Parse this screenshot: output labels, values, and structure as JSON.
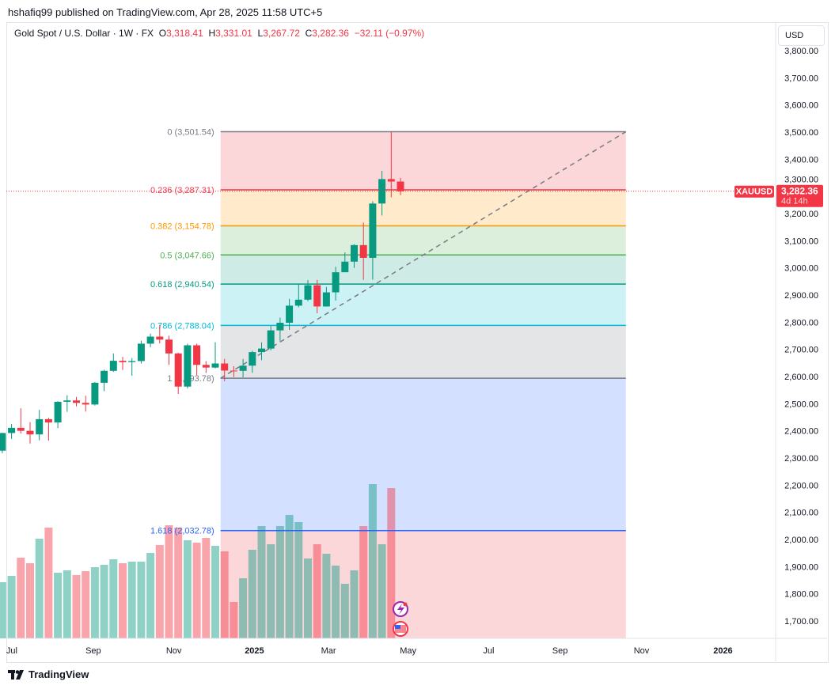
{
  "published": "hshafiq99 published on TradingView.com, Apr 28, 2025 11:58 UTC+5",
  "legend": {
    "symbol": "Gold Spot / U.S. Dollar · 1W · FX",
    "o_label": "O",
    "o": "3,318.41",
    "h_label": "H",
    "h": "3,331.01",
    "l_label": "L",
    "l": "3,267.72",
    "c_label": "C",
    "c": "3,282.36",
    "change": "−32.11 (−0.97%)"
  },
  "currency": "USD",
  "price_tag": {
    "symbol": "XAUUSD",
    "price": "3,282.36",
    "countdown": "4d 14h"
  },
  "footer": "TradingView",
  "colors": {
    "up": "#089981",
    "down": "#f23645"
  },
  "chart_data": {
    "type": "candlestick",
    "ylim": [
      1650,
      3830
    ],
    "y_ticks": [
      1700,
      1800,
      1900,
      2000,
      2100,
      2200,
      2300,
      2400,
      2500,
      2600,
      2700,
      2800,
      2900,
      3000,
      3100,
      3200,
      3300,
      3400,
      3500,
      3600,
      3700,
      3800
    ],
    "x_ticks": [
      {
        "label": "Jul",
        "week": 0
      },
      {
        "label": "Sep",
        "week": 8.8
      },
      {
        "label": "Nov",
        "week": 17.5
      },
      {
        "label": "2025",
        "week": 26.2
      },
      {
        "label": "Mar",
        "week": 34.2
      },
      {
        "label": "May",
        "week": 42.8
      },
      {
        "label": "Jul",
        "week": 51.5
      },
      {
        "label": "Sep",
        "week": 59.2
      },
      {
        "label": "Nov",
        "week": 68
      },
      {
        "label": "2026",
        "week": 76.8
      }
    ],
    "candles": [
      [
        2327,
        2393,
        2318,
        2392
      ],
      [
        2392,
        2425,
        2370,
        2411
      ],
      [
        2411,
        2483,
        2390,
        2400
      ],
      [
        2400,
        2432,
        2353,
        2387
      ],
      [
        2387,
        2477,
        2365,
        2443
      ],
      [
        2443,
        2448,
        2364,
        2431
      ],
      [
        2431,
        2509,
        2410,
        2507
      ],
      [
        2507,
        2531,
        2470,
        2512
      ],
      [
        2512,
        2525,
        2490,
        2503
      ],
      [
        2503,
        2529,
        2471,
        2497
      ],
      [
        2497,
        2580,
        2493,
        2577
      ],
      [
        2577,
        2625,
        2546,
        2621
      ],
      [
        2621,
        2685,
        2617,
        2658
      ],
      [
        2658,
        2672,
        2624,
        2653
      ],
      [
        2653,
        2668,
        2603,
        2657
      ],
      [
        2657,
        2732,
        2648,
        2721
      ],
      [
        2721,
        2758,
        2708,
        2747
      ],
      [
        2747,
        2790,
        2722,
        2736
      ],
      [
        2736,
        2750,
        2643,
        2685
      ],
      [
        2685,
        2688,
        2536,
        2563
      ],
      [
        2563,
        2721,
        2556,
        2715
      ],
      [
        2715,
        2721,
        2605,
        2643
      ],
      [
        2643,
        2657,
        2613,
        2633
      ],
      [
        2633,
        2726,
        2630,
        2648
      ],
      [
        2648,
        2665,
        2583,
        2622
      ],
      [
        2622,
        2638,
        2598,
        2621
      ],
      [
        2621,
        2665,
        2597,
        2640
      ],
      [
        2640,
        2695,
        2614,
        2690
      ],
      [
        2690,
        2726,
        2660,
        2703
      ],
      [
        2703,
        2786,
        2696,
        2770
      ],
      [
        2770,
        2817,
        2730,
        2798
      ],
      [
        2798,
        2886,
        2772,
        2861
      ],
      [
        2861,
        2942,
        2855,
        2883
      ],
      [
        2883,
        2955,
        2877,
        2936
      ],
      [
        2936,
        2956,
        2833,
        2858
      ],
      [
        2858,
        2930,
        2857,
        2910
      ],
      [
        2910,
        3004,
        2880,
        2984
      ],
      [
        2984,
        3057,
        2999,
        3023
      ],
      [
        3023,
        3087,
        3000,
        3084
      ],
      [
        3084,
        3167,
        2956,
        3037
      ],
      [
        3037,
        3245,
        2957,
        3237
      ],
      [
        3237,
        3357,
        3193,
        3327
      ],
      [
        3327,
        3501,
        3260,
        3318
      ],
      [
        3318,
        3331,
        3268,
        3282
      ]
    ],
    "volume": [
      71,
      79,
      102,
      95,
      126,
      140,
      83,
      86,
      80,
      85,
      90,
      93,
      100,
      95,
      97,
      97,
      108,
      118,
      143,
      140,
      124,
      121,
      127,
      117,
      110,
      46,
      76,
      112,
      142,
      119,
      142,
      156,
      147,
      101,
      119,
      107,
      92,
      69,
      86,
      142,
      195,
      119,
      190,
      0
    ],
    "fib": {
      "start_week": 24,
      "end_week": 67,
      "levels": [
        {
          "ratio": "0",
          "price": 3501.54,
          "label": "0 (3,501.54)",
          "color": "#787b86",
          "fill": "rgba(242,54,69,0.2)"
        },
        {
          "ratio": "0.236",
          "price": 3287.31,
          "label": "0.236 (3,287.31)",
          "color": "#f23645",
          "fill": "rgba(255,152,0,0.2)"
        },
        {
          "ratio": "0.382",
          "price": 3154.78,
          "label": "0.382 (3,154.78)",
          "color": "#ff9800",
          "fill": "rgba(76,175,80,0.2)"
        },
        {
          "ratio": "0.5",
          "price": 3047.66,
          "label": "0.5 (3,047.66)",
          "color": "#4caf50",
          "fill": "rgba(8,153,129,0.2)"
        },
        {
          "ratio": "0.618",
          "price": 2940.54,
          "label": "0.618 (2,940.54)",
          "color": "#089981",
          "fill": "rgba(0,188,212,0.2)"
        },
        {
          "ratio": "0.786",
          "price": 2788.04,
          "label": "0.786 (2,788.04)",
          "color": "#00bcd4",
          "fill": "rgba(120,123,134,0.2)"
        },
        {
          "ratio": "1",
          "price": 2593.78,
          "label": "1 (2,593.78)",
          "color": "#787b86",
          "fill": "rgba(41,98,255,0.2)"
        },
        {
          "ratio": "1.618",
          "price": 2032.78,
          "label": "1.618 (2,032.78)",
          "color": "#2962ff",
          "fill": "rgba(242,54,69,0.2)"
        }
      ]
    },
    "last_price": 3282.36
  }
}
